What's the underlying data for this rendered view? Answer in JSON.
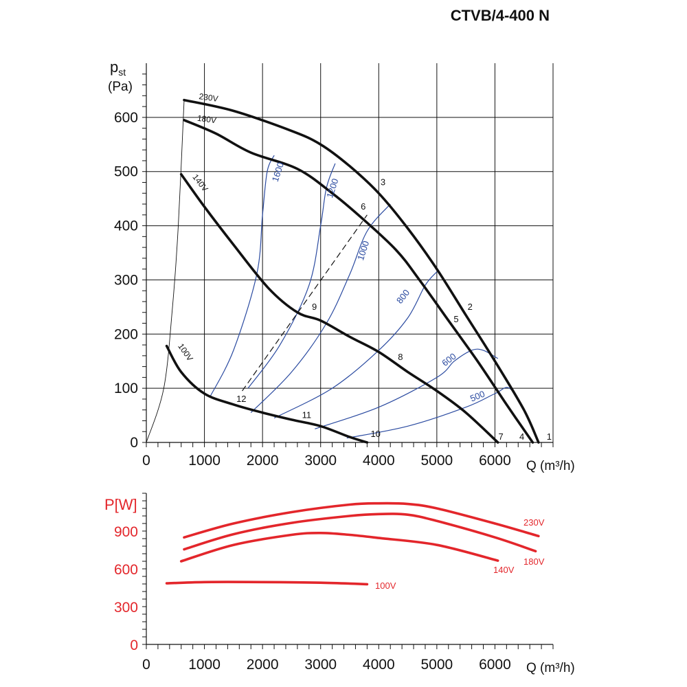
{
  "title": "CTVB/4-400 N",
  "colors": {
    "fan_curve": "#111111",
    "rpm_curve": "#2a4aa0",
    "power_curve": "#e3262b",
    "grid": "#111111"
  },
  "chart_data": [
    {
      "type": "line",
      "name": "pressure",
      "ylabel_main": "p",
      "ylabel_sub": "st",
      "ylabel_unit": "(Pa)",
      "xlabel": "Q (m³/h)",
      "xlim": [
        0,
        7000
      ],
      "ylim": [
        0,
        700
      ],
      "xticks": [
        0,
        1000,
        2000,
        3000,
        4000,
        5000,
        6000
      ],
      "yticks": [
        0,
        100,
        200,
        300,
        400,
        500,
        600
      ],
      "grid": true,
      "series": [
        {
          "name": "230V",
          "x": [
            650,
            1500,
            2500,
            3000,
            3500,
            4000,
            4500,
            5000,
            5500,
            6000,
            6500,
            6750
          ],
          "y": [
            632,
            612,
            575,
            550,
            510,
            460,
            395,
            320,
            235,
            150,
            60,
            0
          ]
        },
        {
          "name": "180V",
          "x": [
            650,
            1200,
            1800,
            2600,
            3200,
            3700,
            4300,
            4700,
            5200,
            5700,
            6200,
            6650
          ],
          "y": [
            595,
            570,
            535,
            505,
            460,
            415,
            355,
            300,
            225,
            150,
            70,
            0
          ]
        },
        {
          "name": "140V",
          "x": [
            600,
            1000,
            1500,
            2100,
            2600,
            3000,
            3500,
            4000,
            4500,
            5000,
            5500,
            6050
          ],
          "y": [
            495,
            435,
            365,
            285,
            240,
            225,
            195,
            167,
            130,
            95,
            55,
            0
          ]
        },
        {
          "name": "100V",
          "x": [
            350,
            600,
            1000,
            1500,
            2000,
            2500,
            3000,
            3500,
            3800
          ],
          "y": [
            178,
            130,
            90,
            70,
            55,
            42,
            30,
            10,
            0
          ]
        }
      ],
      "rpm_curves": [
        {
          "label": "1600",
          "x": [
            1100,
            1500,
            1900,
            2000,
            2080,
            2200
          ],
          "y": [
            85,
            170,
            310,
            420,
            500,
            530
          ]
        },
        {
          "label": "1200",
          "x": [
            1750,
            2300,
            2800,
            3000,
            3100,
            3250
          ],
          "y": [
            100,
            180,
            290,
            400,
            470,
            515
          ]
        },
        {
          "label": "1000",
          "x": [
            1800,
            2500,
            3100,
            3500,
            3800,
            4200
          ],
          "y": [
            55,
            130,
            220,
            310,
            390,
            440
          ]
        },
        {
          "label": "800",
          "x": [
            2200,
            3200,
            4000,
            4500,
            4800,
            5000
          ],
          "y": [
            45,
            100,
            170,
            230,
            290,
            315
          ]
        },
        {
          "label": "600",
          "x": [
            2900,
            4000,
            5000,
            5300,
            5600,
            5800,
            6050
          ],
          "y": [
            25,
            65,
            120,
            150,
            170,
            170,
            155
          ]
        },
        {
          "label": "500",
          "x": [
            3450,
            4500,
            5500,
            6000,
            6250,
            6500
          ],
          "y": [
            8,
            30,
            65,
            90,
            100,
            60
          ]
        }
      ],
      "dashed_line": {
        "x": [
          1650,
          3800
        ],
        "y": [
          95,
          420
        ]
      },
      "system_line": {
        "x": [
          0,
          300,
          450,
          550,
          650
        ],
        "y": [
          0,
          100,
          250,
          400,
          632
        ]
      },
      "point_labels": [
        "1",
        "2",
        "3",
        "4",
        "5",
        "6",
        "7",
        "8",
        "9",
        "10",
        "11",
        "12"
      ]
    },
    {
      "type": "line",
      "name": "power",
      "ylabel": "P[W]",
      "xlabel": "Q (m³/h)",
      "xlim": [
        0,
        7000
      ],
      "ylim": [
        0,
        1200
      ],
      "xticks": [
        0,
        1000,
        2000,
        3000,
        4000,
        5000,
        6000
      ],
      "yticks": [
        0,
        300,
        600,
        900
      ],
      "grid": false,
      "series": [
        {
          "name": "230V",
          "x": [
            650,
            1500,
            2500,
            3500,
            4000,
            4500,
            5000,
            6000,
            6750
          ],
          "y": [
            850,
            960,
            1050,
            1110,
            1120,
            1115,
            1080,
            960,
            860
          ]
        },
        {
          "name": "180V",
          "x": [
            650,
            1500,
            2500,
            3500,
            4000,
            4500,
            5000,
            6000,
            6700
          ],
          "y": [
            755,
            875,
            965,
            1020,
            1035,
            1030,
            980,
            850,
            740
          ]
        },
        {
          "name": "140V",
          "x": [
            600,
            1500,
            2500,
            3000,
            3500,
            4000,
            5000,
            6050
          ],
          "y": [
            660,
            790,
            870,
            885,
            870,
            845,
            790,
            665
          ]
        },
        {
          "name": "100V",
          "x": [
            350,
            1000,
            2000,
            3000,
            3800
          ],
          "y": [
            485,
            495,
            495,
            490,
            478
          ]
        }
      ]
    }
  ]
}
